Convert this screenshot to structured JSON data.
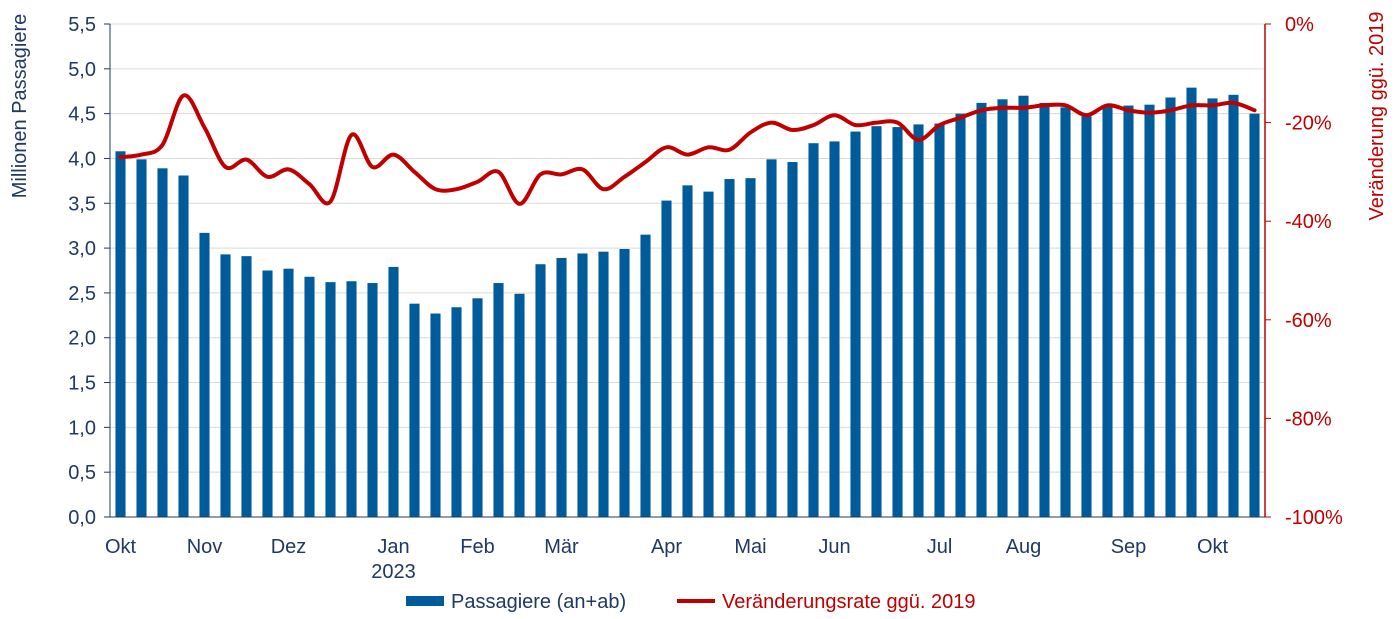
{
  "chart_data": {
    "type": "bar+line",
    "title": "",
    "ylabel_left": "Millionen Passagiere",
    "ylabel_right": "Veränderung ggü. 2019",
    "ylim_left": [
      0,
      5.5
    ],
    "ylim_right": [
      -100,
      0
    ],
    "left_ticks": [
      "0,0",
      "0,5",
      "1,0",
      "1,5",
      "2,0",
      "2,5",
      "3,0",
      "3,5",
      "4,0",
      "4,5",
      "5,0",
      "5,5"
    ],
    "right_ticks": [
      "-100%",
      "-80%",
      "-60%",
      "-40%",
      "-20%",
      "0%"
    ],
    "grid": true,
    "x_labels": [
      {
        "index": 0,
        "label": "Okt"
      },
      {
        "index": 4,
        "label": "Nov"
      },
      {
        "index": 8,
        "label": "Dez"
      },
      {
        "index": 13,
        "label": "Jan"
      },
      {
        "index": 17,
        "label": "Feb"
      },
      {
        "index": 21,
        "label": "Mär"
      },
      {
        "index": 26,
        "label": "Apr"
      },
      {
        "index": 30,
        "label": "Mai"
      },
      {
        "index": 34,
        "label": "Jun"
      },
      {
        "index": 39,
        "label": "Jul"
      },
      {
        "index": 43,
        "label": "Aug"
      },
      {
        "index": 48,
        "label": "Sep"
      },
      {
        "index": 52,
        "label": "Okt"
      }
    ],
    "year_label": {
      "index": 13,
      "label": "2023"
    },
    "series": [
      {
        "name": "Passagiere (an+ab)",
        "type": "bar",
        "color": "#005b9a",
        "values": [
          4.08,
          3.99,
          3.89,
          3.81,
          3.17,
          2.93,
          2.91,
          2.75,
          2.77,
          2.68,
          2.62,
          2.63,
          2.61,
          2.79,
          2.38,
          2.27,
          2.34,
          2.44,
          2.61,
          2.49,
          2.82,
          2.89,
          2.94,
          2.96,
          2.99,
          3.15,
          3.53,
          3.7,
          3.63,
          3.77,
          3.78,
          3.99,
          3.96,
          4.17,
          4.19,
          4.3,
          4.36,
          4.35,
          4.38,
          4.39,
          4.5,
          4.62,
          4.66,
          4.7,
          4.62,
          4.57,
          4.47,
          4.58,
          4.59,
          4.6,
          4.68,
          4.79,
          4.67,
          4.71,
          4.5
        ]
      },
      {
        "name": "Veränderungsrate ggü. 2019",
        "type": "line",
        "color": "#c00000",
        "values": [
          -27,
          -26.5,
          -24.5,
          -14.5,
          -21,
          -29,
          -27.5,
          -31,
          -29.5,
          -32.5,
          -36,
          -22.5,
          -29,
          -26.5,
          -30,
          -33.5,
          -33.5,
          -32,
          -30,
          -36.5,
          -30.5,
          -30.5,
          -29.5,
          -33.5,
          -31,
          -28,
          -25,
          -26.5,
          -25,
          -25.5,
          -22,
          -20,
          -21.5,
          -20.5,
          -18.5,
          -20.5,
          -20,
          -20,
          -23.5,
          -20.5,
          -19,
          -17.5,
          -17,
          -17,
          -16.5,
          -16.5,
          -18.5,
          -16.5,
          -17.5,
          -18,
          -17.5,
          -16.5,
          -16.5,
          -16,
          -17.5
        ]
      }
    ],
    "legend": [
      {
        "label": "Passagiere (an+ab)",
        "kind": "bar",
        "color": "#005b9a"
      },
      {
        "label": "Veränderungsrate ggü. 2019",
        "kind": "line",
        "color": "#c00000"
      }
    ],
    "legend_position": "bottom-center"
  }
}
